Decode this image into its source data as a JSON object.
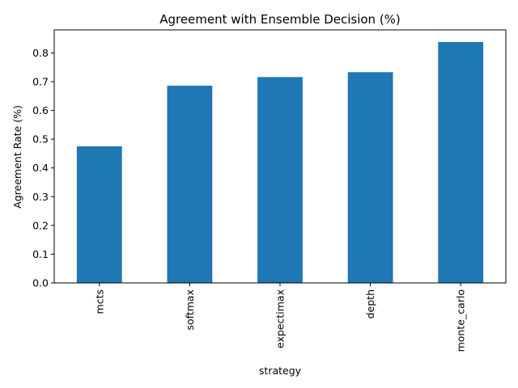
{
  "chart_data": {
    "type": "bar",
    "title": "Agreement with Ensemble Decision (%)",
    "xlabel": "strategy",
    "ylabel": "Agreement Rate (%)",
    "categories": [
      "mcts",
      "softmax",
      "expectimax",
      "depth",
      "monte_carlo"
    ],
    "values": [
      0.475,
      0.686,
      0.716,
      0.733,
      0.838
    ],
    "ylim": [
      0,
      0.88
    ],
    "yticks": [
      "0.0",
      "0.1",
      "0.2",
      "0.3",
      "0.4",
      "0.5",
      "0.6",
      "0.7",
      "0.8"
    ],
    "grid": false,
    "legend": "none",
    "bar_color": "#1f77b4"
  }
}
